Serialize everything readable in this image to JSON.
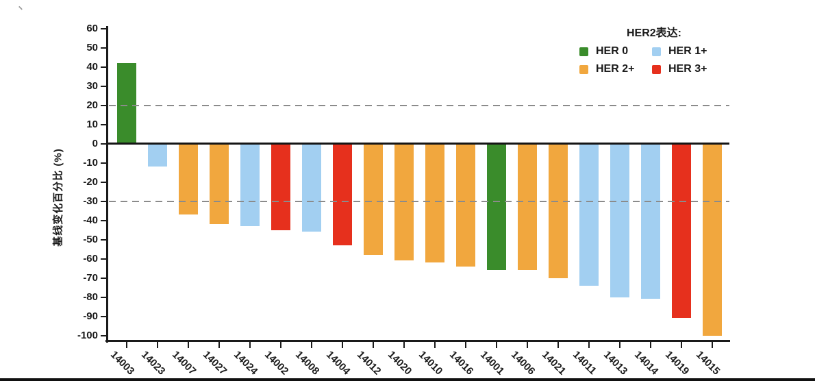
{
  "page": {
    "stray_mark": "、"
  },
  "chart_data": {
    "type": "bar",
    "title": "",
    "subtitle": "",
    "xlabel": "",
    "ylabel": "基线变化百分比 (%)",
    "ylim": [
      -100,
      60
    ],
    "ytick_step": 10,
    "yticks": [
      60,
      50,
      40,
      30,
      20,
      10,
      0,
      -10,
      -20,
      -30,
      -40,
      -50,
      -60,
      -70,
      -80,
      -90,
      -100
    ],
    "reference_lines": [
      20,
      -30
    ],
    "grid": "horizontal dashed reference lines only",
    "legend": {
      "title": "HER2表达:",
      "position": "top-right",
      "items": [
        {
          "label": "HER 0",
          "color": "#3a8c2b"
        },
        {
          "label": "HER 1+",
          "color": "#a2cff1"
        },
        {
          "label": "HER 2+",
          "color": "#f1a73e"
        },
        {
          "label": "HER 3+",
          "color": "#e6301d"
        }
      ]
    },
    "axis_color": "#1a1a1a",
    "refline_color": "#8b8b8b",
    "bars": [
      {
        "id": "14003",
        "value": 42,
        "her2": "HER 0"
      },
      {
        "id": "14023",
        "value": -12,
        "her2": "HER 1+"
      },
      {
        "id": "14007",
        "value": -37,
        "her2": "HER 2+"
      },
      {
        "id": "14027",
        "value": -42,
        "her2": "HER 2+"
      },
      {
        "id": "14024",
        "value": -43,
        "her2": "HER 1+"
      },
      {
        "id": "14002",
        "value": -45,
        "her2": "HER 3+"
      },
      {
        "id": "14008",
        "value": -46,
        "her2": "HER 1+"
      },
      {
        "id": "14004",
        "value": -53,
        "her2": "HER 3+"
      },
      {
        "id": "14012",
        "value": -58,
        "her2": "HER 2+"
      },
      {
        "id": "14020",
        "value": -61,
        "her2": "HER 2+"
      },
      {
        "id": "14010",
        "value": -62,
        "her2": "HER 2+"
      },
      {
        "id": "14016",
        "value": -64,
        "her2": "HER 2+"
      },
      {
        "id": "14001",
        "value": -66,
        "her2": "HER 0"
      },
      {
        "id": "14006",
        "value": -66,
        "her2": "HER 2+"
      },
      {
        "id": "14021",
        "value": -70,
        "her2": "HER 2+"
      },
      {
        "id": "14011",
        "value": -74,
        "her2": "HER 1+"
      },
      {
        "id": "14013",
        "value": -80,
        "her2": "HER 1+"
      },
      {
        "id": "14014",
        "value": -81,
        "her2": "HER 1+"
      },
      {
        "id": "14019",
        "value": -91,
        "her2": "HER 3+"
      },
      {
        "id": "14015",
        "value": -100,
        "her2": "HER 2+"
      }
    ]
  }
}
